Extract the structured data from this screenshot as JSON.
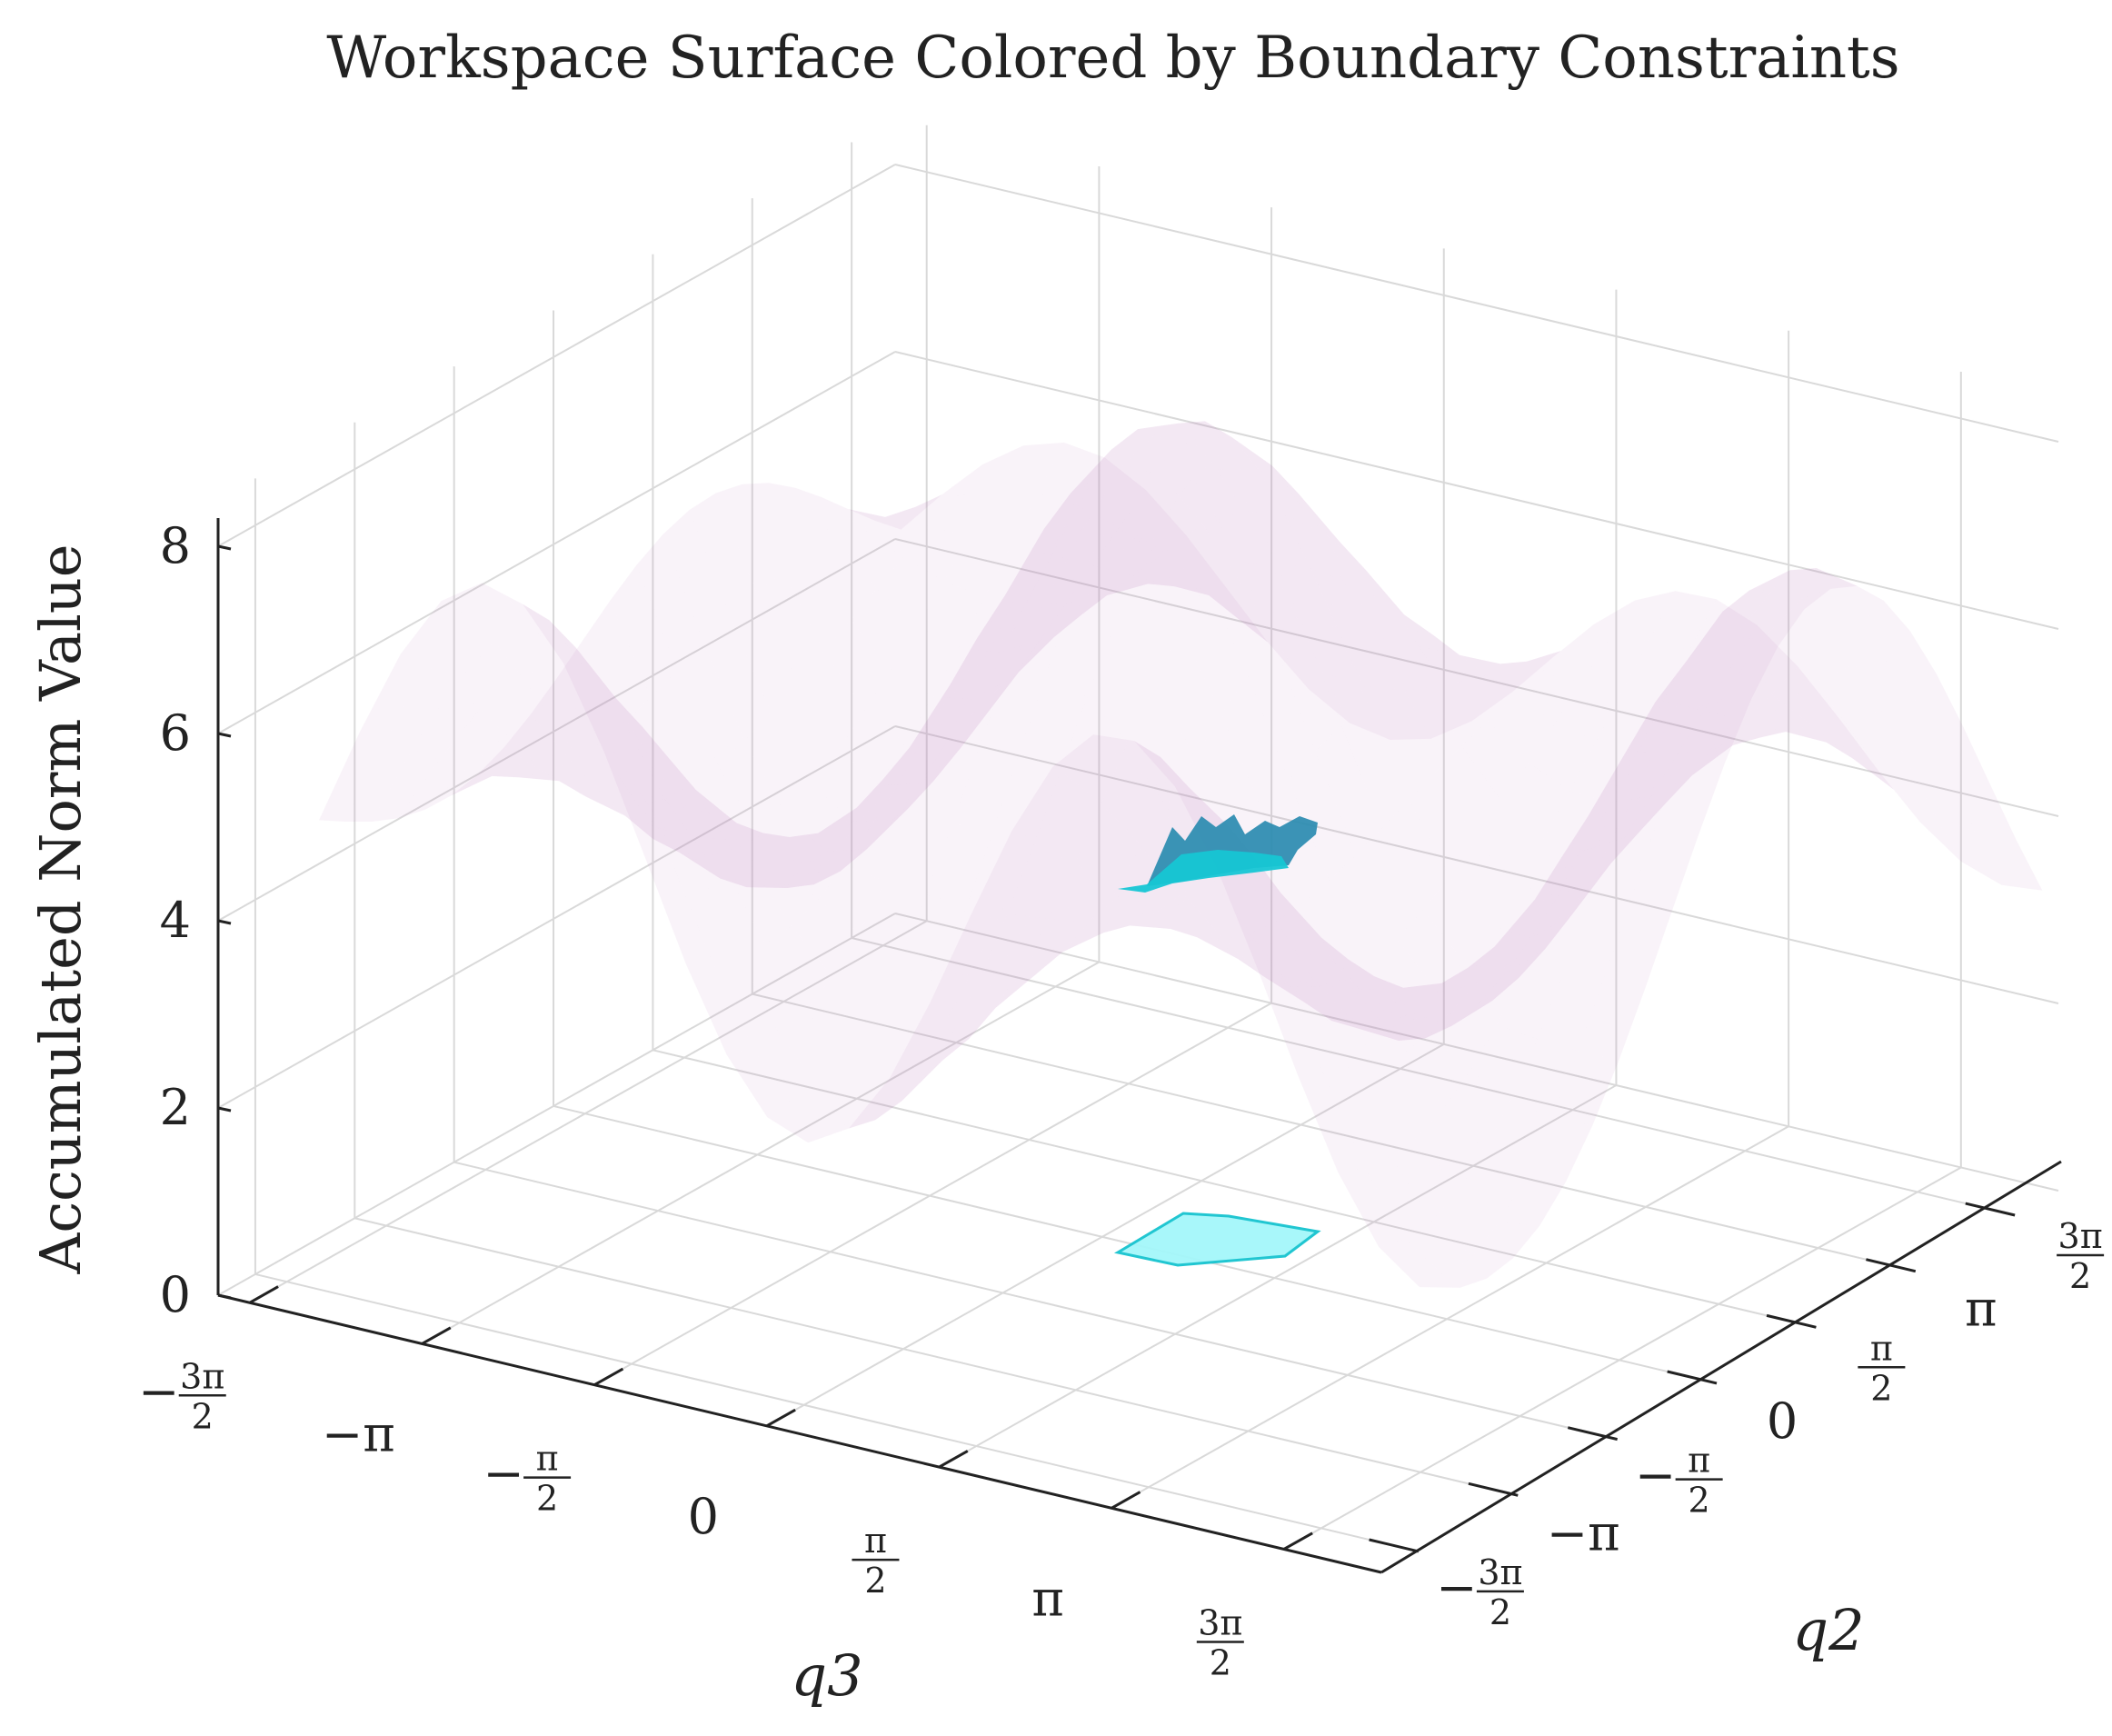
{
  "chart_data": {
    "type": "surface3d",
    "title": "Workspace Surface Colored by Boundary Constraints",
    "zlabel": "Accumulated Norm Value",
    "xlabel": "q3",
    "ylabel": "q2",
    "zlim": [
      0,
      8.5
    ],
    "z_ticks": [
      "0",
      "2",
      "4",
      "6",
      "8"
    ],
    "x_ticks": [
      "−3π/2",
      "−π",
      "−π/2",
      "0",
      "π/2",
      "π",
      "3π/2"
    ],
    "y_ticks": [
      "−3π/2",
      "−π",
      "−π/2",
      "0",
      "π/2",
      "π",
      "3π/2"
    ],
    "xlim": [
      -5.0,
      5.6
    ],
    "ylim": [
      -5.3,
      5.4
    ],
    "grid": true,
    "series": [
      {
        "kind": "translucent-surface",
        "color": "#b77fc2",
        "description_note": "",
        "approx_z_range": [
          2.4,
          8.2
        ]
      },
      {
        "kind": "constraint-patch",
        "color": "#16c6d4",
        "approx_z_range": [
          4.9,
          5.8
        ]
      },
      {
        "kind": "projection-on-floor",
        "color": "#8cf3f7",
        "z": 0
      }
    ]
  }
}
